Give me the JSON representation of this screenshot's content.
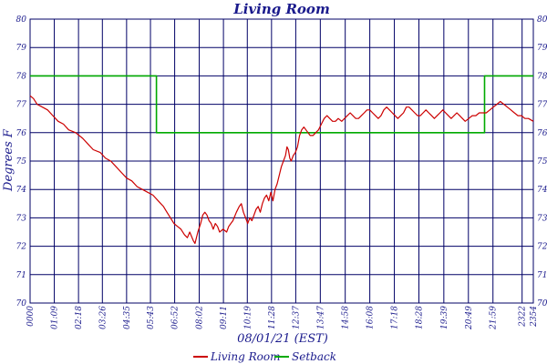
{
  "chart_data": {
    "type": "line",
    "title": "Living Room",
    "xlabel": "08/01/21 (EST)",
    "ylabel": "Degrees F",
    "ylim": [
      70,
      80
    ],
    "yticks": [
      70,
      71,
      72,
      73,
      74,
      75,
      76,
      77,
      78,
      79,
      80
    ],
    "x_tick_labels": [
      "0000",
      "01:09",
      "02:18",
      "03:26",
      "04:35",
      "05:43",
      "06:52",
      "08:02",
      "09:11",
      "10:19",
      "11:28",
      "12:37",
      "13:47",
      "14:58",
      "16:08",
      "17:18",
      "18:28",
      "19:39",
      "20:49",
      "21:59",
      "2322",
      "2354"
    ],
    "x_tick_minutes": [
      0,
      69,
      138,
      206,
      275,
      343,
      412,
      482,
      551,
      619,
      688,
      757,
      827,
      898,
      968,
      1038,
      1108,
      1179,
      1249,
      1319,
      1402,
      1434
    ],
    "xlim_minutes": [
      0,
      1434
    ],
    "grid": true,
    "legend_position": "bottom-center",
    "series": [
      {
        "name": "Living Room",
        "color": "#cc0000",
        "points": [
          [
            0,
            77.3
          ],
          [
            10,
            77.2
          ],
          [
            20,
            77.0
          ],
          [
            35,
            76.9
          ],
          [
            50,
            76.8
          ],
          [
            65,
            76.6
          ],
          [
            80,
            76.4
          ],
          [
            95,
            76.3
          ],
          [
            110,
            76.1
          ],
          [
            130,
            76.0
          ],
          [
            150,
            75.8
          ],
          [
            165,
            75.6
          ],
          [
            180,
            75.4
          ],
          [
            200,
            75.3
          ],
          [
            215,
            75.1
          ],
          [
            230,
            75.0
          ],
          [
            245,
            74.8
          ],
          [
            260,
            74.6
          ],
          [
            275,
            74.4
          ],
          [
            290,
            74.3
          ],
          [
            305,
            74.1
          ],
          [
            320,
            74.0
          ],
          [
            335,
            73.9
          ],
          [
            350,
            73.8
          ],
          [
            365,
            73.6
          ],
          [
            380,
            73.4
          ],
          [
            390,
            73.2
          ],
          [
            400,
            73.0
          ],
          [
            410,
            72.8
          ],
          [
            420,
            72.7
          ],
          [
            430,
            72.6
          ],
          [
            440,
            72.4
          ],
          [
            448,
            72.3
          ],
          [
            455,
            72.5
          ],
          [
            465,
            72.2
          ],
          [
            470,
            72.1
          ],
          [
            478,
            72.5
          ],
          [
            486,
            72.8
          ],
          [
            492,
            73.1
          ],
          [
            498,
            73.2
          ],
          [
            504,
            73.1
          ],
          [
            510,
            72.9
          ],
          [
            516,
            72.8
          ],
          [
            522,
            72.6
          ],
          [
            528,
            72.8
          ],
          [
            534,
            72.7
          ],
          [
            540,
            72.5
          ],
          [
            550,
            72.6
          ],
          [
            560,
            72.5
          ],
          [
            566,
            72.7
          ],
          [
            572,
            72.8
          ],
          [
            578,
            72.9
          ],
          [
            588,
            73.2
          ],
          [
            596,
            73.4
          ],
          [
            602,
            73.5
          ],
          [
            608,
            73.2
          ],
          [
            614,
            73.0
          ],
          [
            620,
            72.8
          ],
          [
            626,
            73.0
          ],
          [
            632,
            72.9
          ],
          [
            638,
            73.1
          ],
          [
            644,
            73.3
          ],
          [
            650,
            73.4
          ],
          [
            656,
            73.2
          ],
          [
            662,
            73.5
          ],
          [
            668,
            73.7
          ],
          [
            674,
            73.8
          ],
          [
            680,
            73.6
          ],
          [
            686,
            73.9
          ],
          [
            692,
            73.6
          ],
          [
            698,
            74.0
          ],
          [
            704,
            74.2
          ],
          [
            710,
            74.5
          ],
          [
            716,
            74.8
          ],
          [
            722,
            75.0
          ],
          [
            728,
            75.2
          ],
          [
            732,
            75.5
          ],
          [
            736,
            75.4
          ],
          [
            740,
            75.1
          ],
          [
            744,
            75.0
          ],
          [
            750,
            75.2
          ],
          [
            756,
            75.3
          ],
          [
            762,
            75.5
          ],
          [
            768,
            75.9
          ],
          [
            774,
            76.1
          ],
          [
            780,
            76.2
          ],
          [
            786,
            76.1
          ],
          [
            792,
            76.0
          ],
          [
            798,
            75.9
          ],
          [
            806,
            75.9
          ],
          [
            814,
            76.0
          ],
          [
            822,
            76.1
          ],
          [
            830,
            76.3
          ],
          [
            838,
            76.5
          ],
          [
            846,
            76.6
          ],
          [
            854,
            76.5
          ],
          [
            862,
            76.4
          ],
          [
            870,
            76.4
          ],
          [
            878,
            76.5
          ],
          [
            888,
            76.4
          ],
          [
            896,
            76.5
          ],
          [
            904,
            76.6
          ],
          [
            912,
            76.7
          ],
          [
            920,
            76.6
          ],
          [
            928,
            76.5
          ],
          [
            936,
            76.5
          ],
          [
            944,
            76.6
          ],
          [
            952,
            76.7
          ],
          [
            960,
            76.8
          ],
          [
            968,
            76.8
          ],
          [
            976,
            76.7
          ],
          [
            984,
            76.6
          ],
          [
            992,
            76.5
          ],
          [
            1000,
            76.6
          ],
          [
            1008,
            76.8
          ],
          [
            1016,
            76.9
          ],
          [
            1024,
            76.8
          ],
          [
            1032,
            76.7
          ],
          [
            1040,
            76.6
          ],
          [
            1048,
            76.5
          ],
          [
            1056,
            76.6
          ],
          [
            1064,
            76.7
          ],
          [
            1072,
            76.9
          ],
          [
            1080,
            76.9
          ],
          [
            1088,
            76.8
          ],
          [
            1096,
            76.7
          ],
          [
            1104,
            76.6
          ],
          [
            1112,
            76.6
          ],
          [
            1120,
            76.7
          ],
          [
            1128,
            76.8
          ],
          [
            1136,
            76.7
          ],
          [
            1144,
            76.6
          ],
          [
            1152,
            76.5
          ],
          [
            1160,
            76.6
          ],
          [
            1168,
            76.7
          ],
          [
            1176,
            76.8
          ],
          [
            1184,
            76.7
          ],
          [
            1192,
            76.6
          ],
          [
            1200,
            76.5
          ],
          [
            1208,
            76.6
          ],
          [
            1216,
            76.7
          ],
          [
            1224,
            76.6
          ],
          [
            1232,
            76.5
          ],
          [
            1240,
            76.4
          ],
          [
            1250,
            76.5
          ],
          [
            1260,
            76.6
          ],
          [
            1270,
            76.6
          ],
          [
            1280,
            76.7
          ],
          [
            1290,
            76.7
          ],
          [
            1300,
            76.7
          ],
          [
            1310,
            76.8
          ],
          [
            1320,
            76.9
          ],
          [
            1330,
            77.0
          ],
          [
            1340,
            77.1
          ],
          [
            1350,
            77.0
          ],
          [
            1360,
            76.9
          ],
          [
            1370,
            76.8
          ],
          [
            1380,
            76.7
          ],
          [
            1390,
            76.6
          ],
          [
            1400,
            76.6
          ],
          [
            1410,
            76.5
          ],
          [
            1420,
            76.5
          ],
          [
            1434,
            76.4
          ]
        ]
      },
      {
        "name": "Setback",
        "color": "#00aa00",
        "points": [
          [
            0,
            78
          ],
          [
            360,
            78
          ],
          [
            360,
            76
          ],
          [
            1295,
            76
          ],
          [
            1295,
            78
          ],
          [
            1434,
            78
          ]
        ]
      }
    ]
  }
}
